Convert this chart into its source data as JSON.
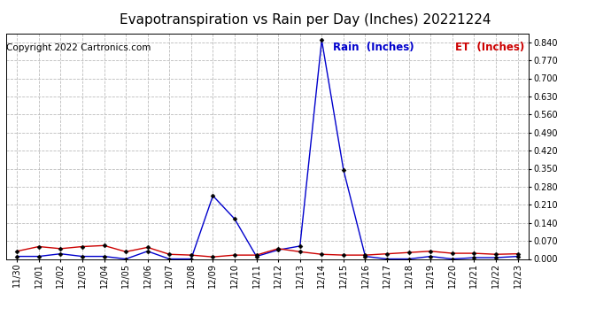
{
  "title": "Evapotranspiration vs Rain per Day (Inches) 20221224",
  "copyright": "Copyright 2022 Cartronics.com",
  "legend_rain": "Rain  (Inches)",
  "legend_et": "ET  (Inches)",
  "x_labels": [
    "11/30",
    "12/01",
    "12/02",
    "12/03",
    "12/04",
    "12/05",
    "12/06",
    "12/07",
    "12/08",
    "12/09",
    "12/10",
    "12/11",
    "12/12",
    "12/13",
    "12/14",
    "12/15",
    "12/16",
    "12/17",
    "12/18",
    "12/19",
    "12/20",
    "12/21",
    "12/22",
    "12/23"
  ],
  "rain_values": [
    0.01,
    0.01,
    0.02,
    0.01,
    0.01,
    0.0,
    0.03,
    0.0,
    0.0,
    0.245,
    0.155,
    0.01,
    0.035,
    0.05,
    0.848,
    0.345,
    0.01,
    0.0,
    0.0,
    0.01,
    0.0,
    0.005,
    0.005,
    0.01
  ],
  "et_values": [
    0.03,
    0.048,
    0.04,
    0.048,
    0.052,
    0.028,
    0.045,
    0.018,
    0.015,
    0.008,
    0.015,
    0.015,
    0.04,
    0.028,
    0.018,
    0.015,
    0.015,
    0.02,
    0.025,
    0.03,
    0.022,
    0.022,
    0.018,
    0.02
  ],
  "rain_color": "#0000cc",
  "et_color": "#cc0000",
  "grid_color": "#bbbbbb",
  "background_color": "#ffffff",
  "ylim": [
    0.0,
    0.875
  ],
  "yticks": [
    0.0,
    0.07,
    0.14,
    0.21,
    0.28,
    0.35,
    0.42,
    0.49,
    0.56,
    0.63,
    0.7,
    0.77,
    0.84
  ],
  "title_fontsize": 11,
  "copyright_fontsize": 7.5,
  "legend_fontsize": 8.5,
  "tick_fontsize": 7
}
